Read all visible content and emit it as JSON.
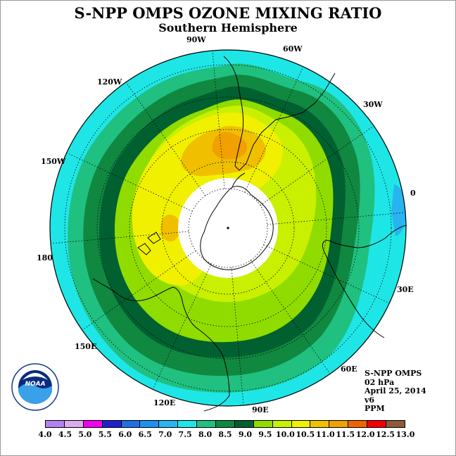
{
  "title": "S-NPP OMPS OZONE MIXING RATIO",
  "subtitle": "Southern Hemisphere",
  "info": {
    "satellite": "S-NPP OMPS",
    "level": "02 hPa",
    "date": "April 25, 2014",
    "version": "v6",
    "units": "PPM"
  },
  "logo": {
    "text": "NOAA",
    "ring_text": "NATIONAL OCEANIC AND ATMOSPHERIC ADMINISTRATION · U.S. DEPARTMENT OF COMMERCE"
  },
  "longitude_labels": {
    "lon_0": "0",
    "lon_30e": "30E",
    "lon_60e": "60E",
    "lon_90e": "90E",
    "lon_120e": "120E",
    "lon_150e": "150E",
    "lon_180": "180",
    "lon_150w": "150W",
    "lon_120w": "120W",
    "lon_90w": "90W",
    "lon_60w": "60W",
    "lon_30w": "30W"
  },
  "colorbar": {
    "ticks": [
      "4.0",
      "4.5",
      "5.0",
      "5.5",
      "6.0",
      "6.5",
      "7.0",
      "7.5",
      "8.0",
      "8.5",
      "9.0",
      "9.5",
      "10.0",
      "10.5",
      "11.0",
      "11.5",
      "12.0",
      "12.5",
      "13.0"
    ],
    "colors": [
      "#b482f0",
      "#dcaaf0",
      "#f000f0",
      "#2020d0",
      "#1e6ee6",
      "#2090f0",
      "#28b4f0",
      "#1ee6e6",
      "#20c080",
      "#108840",
      "#006030",
      "#90dc00",
      "#c8f000",
      "#f0f000",
      "#f0c000",
      "#f0a000",
      "#f06400",
      "#f00000",
      "#8c5a3c"
    ]
  },
  "map_data": {
    "projection": "south polar stereographic",
    "field": "ozone mixing ratio",
    "contour_levels_ppm": [
      4.0,
      4.5,
      5.0,
      5.5,
      6.0,
      6.5,
      7.0,
      7.5,
      8.0,
      8.5,
      9.0,
      9.5,
      10.0,
      10.5,
      11.0,
      11.5,
      12.0,
      12.5,
      13.0
    ],
    "outer_ring_band_ppm": [
      7.5,
      8.0
    ],
    "minimum_patch_ppm": [
      7.0,
      7.5
    ],
    "maximum_patch_ppm": [
      10.5,
      11.0
    ],
    "polar_night_region": "no data (white)"
  }
}
